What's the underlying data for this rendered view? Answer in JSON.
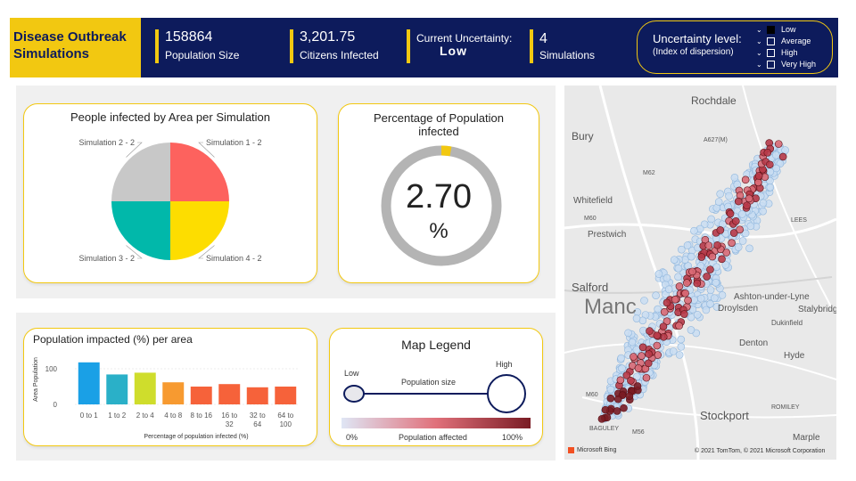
{
  "header": {
    "title_line1": "Disease Outbreak",
    "title_line2": "Simulations",
    "kpis": [
      {
        "value": "158864",
        "label": "Population Size"
      },
      {
        "value": "3,201.75",
        "label": "Citizens Infected"
      },
      {
        "value": "Current Uncertainty:",
        "label": "Low"
      },
      {
        "value": "4",
        "label": "Simulations"
      }
    ],
    "uncertainty": {
      "title": "Uncertainty level:",
      "subtitle": "(Index of dispersion)",
      "options": [
        {
          "label": "Low",
          "checked": true
        },
        {
          "label": "Average",
          "checked": false
        },
        {
          "label": "High",
          "checked": false
        },
        {
          "label": "Very High",
          "checked": false
        }
      ]
    }
  },
  "pie_card": {
    "title": "People infected by Area per Simulation"
  },
  "donut_card": {
    "title_line1": "Percentage of Population",
    "title_line2": "infected",
    "value": "2.70",
    "unit": "%",
    "fraction": 0.027
  },
  "bar_card": {
    "title": "Population impacted (%) per area"
  },
  "legend_card": {
    "title": "Map Legend",
    "low": "Low",
    "high": "High",
    "size_label": "Population size",
    "min_label": "0%",
    "mid_label": "Population affected",
    "max_label": "100%"
  },
  "map": {
    "places": [
      "Rochdale",
      "Bury",
      "A627(M)",
      "M62",
      "Whitefield",
      "M60",
      "Prestwich",
      "LEES",
      "Salford",
      "Manc",
      "Ashton-under-Lyne",
      "Stalybridge",
      "Droylsden",
      "Dukinfield",
      "Denton",
      "Hyde",
      "M60",
      "Stockport",
      "ROMILEY",
      "Marple",
      "BAGULEY",
      "M56"
    ],
    "attribution": "© 2021 TomTom, © 2021 Microsoft Corporation",
    "brand": "Microsoft Bing"
  },
  "colors": {
    "navy": "#0d1b5c",
    "yellow": "#f2c811",
    "grey": "#b4b4b4"
  },
  "chart_data": [
    {
      "type": "pie",
      "labels": [
        "Simulation 1 - 2",
        "Simulation 4 - 2",
        "Simulation 3 - 2",
        "Simulation 2 - 2"
      ],
      "values": [
        25,
        25,
        25,
        25
      ],
      "colors": [
        "#fd625e",
        "#fddd00",
        "#01b8aa",
        "#c8c8c8"
      ],
      "title": "People infected by Area per Simulation"
    },
    {
      "type": "bar",
      "title": "Population impacted (%) per area",
      "xlabel": "Percentage of population infected (%)",
      "ylabel": "Area Population",
      "categories": [
        "0 to 1",
        "1 to 2",
        "2 to 4",
        "4 to 8",
        "8 to 16",
        "16 to 32",
        "32 to 64",
        "64 to 100"
      ],
      "values": [
        118,
        84,
        89,
        62,
        50,
        57,
        48,
        50
      ],
      "colors": [
        "#1aa0e6",
        "#2ab0c8",
        "#cfdd2c",
        "#f79a30",
        "#f6623a",
        "#f6623a",
        "#f6623a",
        "#f6623a"
      ],
      "yticks": [
        0,
        100
      ],
      "ylim": [
        0,
        140
      ]
    }
  ]
}
